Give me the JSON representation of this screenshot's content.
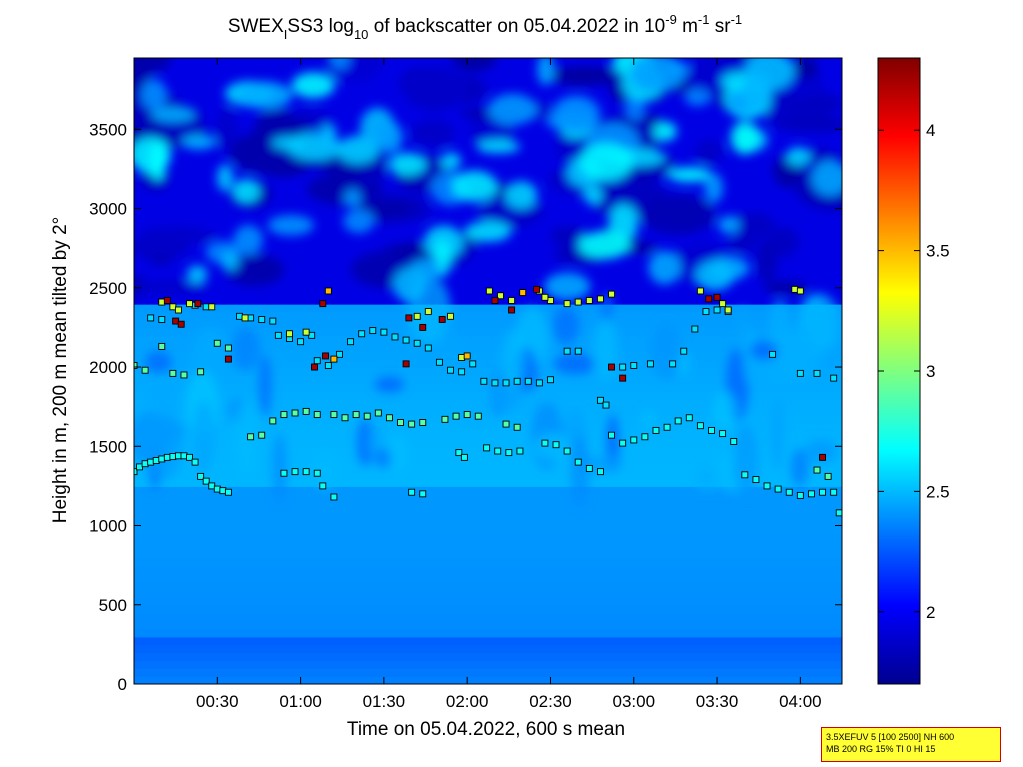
{
  "chart_data": {
    "type": "heatmap",
    "title": {
      "prefix": "SWEX",
      "sub_i": "I",
      "mid": "SS3 log",
      "sub_10": "10",
      "mid2": " of backscatter on 05.04.2022 in 10",
      "sup_neg9": "-9",
      "unit_m": " m",
      "sup_neg1a": "-1",
      "unit_sr": " sr",
      "sup_neg1b": "-1"
    },
    "xlabel": "Time on 05.04.2022, 600 s mean",
    "ylabel": "Height in m, 200 m mean tilted by 2°",
    "x_ticks": [
      "00:30",
      "01:00",
      "01:30",
      "02:00",
      "02:30",
      "03:00",
      "03:30",
      "04:00"
    ],
    "x_tick_minutes": [
      30,
      60,
      90,
      120,
      150,
      180,
      210,
      240
    ],
    "xlim_minutes": [
      0,
      255
    ],
    "y_ticks": [
      "0",
      "500",
      "1000",
      "1500",
      "2000",
      "2500",
      "3000",
      "3500"
    ],
    "y_tick_values": [
      0,
      500,
      1000,
      1500,
      2000,
      2500,
      3000,
      3500
    ],
    "ylim": [
      0,
      3950
    ],
    "colorbar": {
      "ticks": [
        "2",
        "2.5",
        "3",
        "3.5",
        "4"
      ],
      "tick_values": [
        2,
        2.5,
        3,
        3.5,
        4
      ],
      "range": [
        1.7,
        4.3
      ],
      "colormap": "jet"
    },
    "field_description_values": {
      "top_zone_min_height": 2450,
      "top_zone_level": 1.95,
      "surface_level": 2.3
    },
    "markers": [
      {
        "t": 0,
        "h": 1340,
        "v": 2.7
      },
      {
        "t": 2,
        "h": 1370,
        "v": 2.7
      },
      {
        "t": 4,
        "h": 1390,
        "v": 2.7
      },
      {
        "t": 6,
        "h": 1400,
        "v": 2.7
      },
      {
        "t": 8,
        "h": 1410,
        "v": 2.7
      },
      {
        "t": 10,
        "h": 1420,
        "v": 2.7
      },
      {
        "t": 12,
        "h": 1430,
        "v": 2.7
      },
      {
        "t": 14,
        "h": 1435,
        "v": 2.7
      },
      {
        "t": 16,
        "h": 1440,
        "v": 2.7
      },
      {
        "t": 18,
        "h": 1440,
        "v": 2.7
      },
      {
        "t": 20,
        "h": 1430,
        "v": 2.7
      },
      {
        "t": 22,
        "h": 1400,
        "v": 2.7
      },
      {
        "t": 24,
        "h": 1310,
        "v": 2.7
      },
      {
        "t": 26,
        "h": 1280,
        "v": 2.7
      },
      {
        "t": 28,
        "h": 1250,
        "v": 2.7
      },
      {
        "t": 30,
        "h": 1230,
        "v": 2.7
      },
      {
        "t": 32,
        "h": 1220,
        "v": 2.7
      },
      {
        "t": 34,
        "h": 1210,
        "v": 2.7
      },
      {
        "t": 54,
        "h": 1330,
        "v": 2.7
      },
      {
        "t": 58,
        "h": 1340,
        "v": 2.7
      },
      {
        "t": 62,
        "h": 1340,
        "v": 2.7
      },
      {
        "t": 66,
        "h": 1330,
        "v": 2.7
      },
      {
        "t": 68,
        "h": 1250,
        "v": 2.7
      },
      {
        "t": 72,
        "h": 1180,
        "v": 2.7
      },
      {
        "t": 100,
        "h": 1210,
        "v": 2.7
      },
      {
        "t": 104,
        "h": 1200,
        "v": 2.7
      },
      {
        "t": 117,
        "h": 1460,
        "v": 2.7
      },
      {
        "t": 119,
        "h": 1430,
        "v": 2.7
      },
      {
        "t": 127,
        "h": 1490,
        "v": 2.7
      },
      {
        "t": 131,
        "h": 1470,
        "v": 2.7
      },
      {
        "t": 135,
        "h": 1460,
        "v": 2.7
      },
      {
        "t": 139,
        "h": 1470,
        "v": 2.7
      },
      {
        "t": 148,
        "h": 1520,
        "v": 2.7
      },
      {
        "t": 152,
        "h": 1510,
        "v": 2.7
      },
      {
        "t": 156,
        "h": 1470,
        "v": 2.7
      },
      {
        "t": 160,
        "h": 1400,
        "v": 2.7
      },
      {
        "t": 164,
        "h": 1360,
        "v": 2.7
      },
      {
        "t": 168,
        "h": 1340,
        "v": 2.7
      },
      {
        "t": 172,
        "h": 1570,
        "v": 2.7
      },
      {
        "t": 176,
        "h": 1520,
        "v": 2.7
      },
      {
        "t": 180,
        "h": 1540,
        "v": 2.7
      },
      {
        "t": 184,
        "h": 1560,
        "v": 2.7
      },
      {
        "t": 188,
        "h": 1600,
        "v": 2.7
      },
      {
        "t": 192,
        "h": 1620,
        "v": 2.7
      },
      {
        "t": 196,
        "h": 1660,
        "v": 2.7
      },
      {
        "t": 200,
        "h": 1680,
        "v": 2.7
      },
      {
        "t": 204,
        "h": 1630,
        "v": 2.7
      },
      {
        "t": 208,
        "h": 1600,
        "v": 2.7
      },
      {
        "t": 212,
        "h": 1580,
        "v": 2.7
      },
      {
        "t": 216,
        "h": 1530,
        "v": 2.7
      },
      {
        "t": 220,
        "h": 1320,
        "v": 2.7
      },
      {
        "t": 224,
        "h": 1290,
        "v": 2.7
      },
      {
        "t": 228,
        "h": 1250,
        "v": 2.7
      },
      {
        "t": 232,
        "h": 1230,
        "v": 2.7
      },
      {
        "t": 236,
        "h": 1210,
        "v": 2.7
      },
      {
        "t": 240,
        "h": 1190,
        "v": 2.7
      },
      {
        "t": 244,
        "h": 1200,
        "v": 2.7
      },
      {
        "t": 248,
        "h": 1210,
        "v": 2.7
      },
      {
        "t": 252,
        "h": 1210,
        "v": 2.7
      },
      {
        "t": 254,
        "h": 1080,
        "v": 2.7
      },
      {
        "t": 0,
        "h": 2010,
        "v": 2.9
      },
      {
        "t": 4,
        "h": 1980,
        "v": 2.9
      },
      {
        "t": 10,
        "h": 2130,
        "v": 2.9
      },
      {
        "t": 14,
        "h": 1960,
        "v": 2.9
      },
      {
        "t": 18,
        "h": 1950,
        "v": 2.9
      },
      {
        "t": 24,
        "h": 1970,
        "v": 2.9
      },
      {
        "t": 30,
        "h": 2150,
        "v": 2.9
      },
      {
        "t": 34,
        "h": 2120,
        "v": 2.9
      },
      {
        "t": 42,
        "h": 1560,
        "v": 2.9
      },
      {
        "t": 46,
        "h": 1570,
        "v": 2.9
      },
      {
        "t": 50,
        "h": 1660,
        "v": 2.9
      },
      {
        "t": 54,
        "h": 1700,
        "v": 2.9
      },
      {
        "t": 58,
        "h": 1710,
        "v": 2.9
      },
      {
        "t": 62,
        "h": 1720,
        "v": 2.9
      },
      {
        "t": 66,
        "h": 1700,
        "v": 2.9
      },
      {
        "t": 72,
        "h": 1700,
        "v": 2.9
      },
      {
        "t": 76,
        "h": 1680,
        "v": 2.9
      },
      {
        "t": 80,
        "h": 1700,
        "v": 2.9
      },
      {
        "t": 84,
        "h": 1690,
        "v": 2.9
      },
      {
        "t": 88,
        "h": 1710,
        "v": 2.9
      },
      {
        "t": 92,
        "h": 1680,
        "v": 2.9
      },
      {
        "t": 96,
        "h": 1650,
        "v": 2.9
      },
      {
        "t": 100,
        "h": 1640,
        "v": 2.9
      },
      {
        "t": 104,
        "h": 1650,
        "v": 2.9
      },
      {
        "t": 112,
        "h": 1670,
        "v": 2.9
      },
      {
        "t": 116,
        "h": 1690,
        "v": 2.9
      },
      {
        "t": 120,
        "h": 1700,
        "v": 2.9
      },
      {
        "t": 124,
        "h": 1690,
        "v": 2.9
      },
      {
        "t": 134,
        "h": 1640,
        "v": 2.9
      },
      {
        "t": 138,
        "h": 1620,
        "v": 2.9
      },
      {
        "t": 246,
        "h": 1350,
        "v": 2.9
      },
      {
        "t": 250,
        "h": 1310,
        "v": 2.9
      },
      {
        "t": 6,
        "h": 2310,
        "v": 2.6
      },
      {
        "t": 10,
        "h": 2300,
        "v": 2.6
      },
      {
        "t": 22,
        "h": 2390,
        "v": 2.6
      },
      {
        "t": 26,
        "h": 2380,
        "v": 2.6
      },
      {
        "t": 38,
        "h": 2320,
        "v": 2.6
      },
      {
        "t": 42,
        "h": 2310,
        "v": 2.6
      },
      {
        "t": 46,
        "h": 2300,
        "v": 2.6
      },
      {
        "t": 50,
        "h": 2290,
        "v": 2.6
      },
      {
        "t": 52,
        "h": 2200,
        "v": 2.6
      },
      {
        "t": 56,
        "h": 2180,
        "v": 2.6
      },
      {
        "t": 60,
        "h": 2160,
        "v": 2.6
      },
      {
        "t": 64,
        "h": 2200,
        "v": 2.6
      },
      {
        "t": 66,
        "h": 2040,
        "v": 2.6
      },
      {
        "t": 70,
        "h": 2010,
        "v": 2.6
      },
      {
        "t": 74,
        "h": 2080,
        "v": 2.6
      },
      {
        "t": 78,
        "h": 2160,
        "v": 2.6
      },
      {
        "t": 82,
        "h": 2210,
        "v": 2.6
      },
      {
        "t": 86,
        "h": 2230,
        "v": 2.6
      },
      {
        "t": 90,
        "h": 2220,
        "v": 2.6
      },
      {
        "t": 94,
        "h": 2190,
        "v": 2.6
      },
      {
        "t": 98,
        "h": 2170,
        "v": 2.6
      },
      {
        "t": 102,
        "h": 2150,
        "v": 2.6
      },
      {
        "t": 106,
        "h": 2120,
        "v": 2.6
      },
      {
        "t": 110,
        "h": 2030,
        "v": 2.6
      },
      {
        "t": 114,
        "h": 1980,
        "v": 2.6
      },
      {
        "t": 118,
        "h": 1970,
        "v": 2.6
      },
      {
        "t": 122,
        "h": 2020,
        "v": 2.6
      },
      {
        "t": 126,
        "h": 1910,
        "v": 2.6
      },
      {
        "t": 130,
        "h": 1900,
        "v": 2.6
      },
      {
        "t": 134,
        "h": 1900,
        "v": 2.6
      },
      {
        "t": 138,
        "h": 1910,
        "v": 2.6
      },
      {
        "t": 142,
        "h": 1910,
        "v": 2.6
      },
      {
        "t": 146,
        "h": 1900,
        "v": 2.6
      },
      {
        "t": 150,
        "h": 1920,
        "v": 2.6
      },
      {
        "t": 156,
        "h": 2100,
        "v": 2.6
      },
      {
        "t": 160,
        "h": 2100,
        "v": 2.6
      },
      {
        "t": 168,
        "h": 1790,
        "v": 2.6
      },
      {
        "t": 170,
        "h": 1760,
        "v": 2.6
      },
      {
        "t": 176,
        "h": 2000,
        "v": 2.6
      },
      {
        "t": 180,
        "h": 2010,
        "v": 2.6
      },
      {
        "t": 186,
        "h": 2020,
        "v": 2.6
      },
      {
        "t": 194,
        "h": 2020,
        "v": 2.6
      },
      {
        "t": 198,
        "h": 2100,
        "v": 2.6
      },
      {
        "t": 202,
        "h": 2240,
        "v": 2.6
      },
      {
        "t": 206,
        "h": 2350,
        "v": 2.6
      },
      {
        "t": 210,
        "h": 2360,
        "v": 2.6
      },
      {
        "t": 214,
        "h": 2350,
        "v": 2.6
      },
      {
        "t": 230,
        "h": 2080,
        "v": 2.6
      },
      {
        "t": 240,
        "h": 1960,
        "v": 2.6
      },
      {
        "t": 246,
        "h": 1960,
        "v": 2.6
      },
      {
        "t": 252,
        "h": 1930,
        "v": 2.6
      },
      {
        "t": 10,
        "h": 2410,
        "v": 3.2
      },
      {
        "t": 14,
        "h": 2380,
        "v": 3.2
      },
      {
        "t": 16,
        "h": 2360,
        "v": 3.2
      },
      {
        "t": 20,
        "h": 2400,
        "v": 3.2
      },
      {
        "t": 28,
        "h": 2380,
        "v": 3.2
      },
      {
        "t": 40,
        "h": 2310,
        "v": 3.2
      },
      {
        "t": 56,
        "h": 2210,
        "v": 3.2
      },
      {
        "t": 62,
        "h": 2220,
        "v": 3.2
      },
      {
        "t": 102,
        "h": 2320,
        "v": 3.2
      },
      {
        "t": 106,
        "h": 2350,
        "v": 3.2
      },
      {
        "t": 114,
        "h": 2320,
        "v": 3.2
      },
      {
        "t": 118,
        "h": 2060,
        "v": 3.2
      },
      {
        "t": 128,
        "h": 2480,
        "v": 3.2
      },
      {
        "t": 132,
        "h": 2450,
        "v": 3.2
      },
      {
        "t": 136,
        "h": 2420,
        "v": 3.2
      },
      {
        "t": 146,
        "h": 2480,
        "v": 3.2
      },
      {
        "t": 150,
        "h": 2420,
        "v": 3.2
      },
      {
        "t": 156,
        "h": 2400,
        "v": 3.2
      },
      {
        "t": 160,
        "h": 2410,
        "v": 3.2
      },
      {
        "t": 164,
        "h": 2420,
        "v": 3.2
      },
      {
        "t": 168,
        "h": 2430,
        "v": 3.2
      },
      {
        "t": 172,
        "h": 2460,
        "v": 3.2
      },
      {
        "t": 204,
        "h": 2480,
        "v": 3.2
      },
      {
        "t": 212,
        "h": 2400,
        "v": 3.2
      },
      {
        "t": 214,
        "h": 2360,
        "v": 3.2
      },
      {
        "t": 238,
        "h": 2490,
        "v": 3.2
      },
      {
        "t": 240,
        "h": 2480,
        "v": 3.2
      },
      {
        "t": 148,
        "h": 2440,
        "v": 3.2
      },
      {
        "t": 12,
        "h": 2420,
        "v": 4.2
      },
      {
        "t": 15,
        "h": 2290,
        "v": 4.2
      },
      {
        "t": 17,
        "h": 2270,
        "v": 4.2
      },
      {
        "t": 23,
        "h": 2400,
        "v": 4.2
      },
      {
        "t": 34,
        "h": 2050,
        "v": 4.2
      },
      {
        "t": 65,
        "h": 2000,
        "v": 4.2
      },
      {
        "t": 69,
        "h": 2070,
        "v": 4.2
      },
      {
        "t": 68,
        "h": 2400,
        "v": 4.2
      },
      {
        "t": 99,
        "h": 2310,
        "v": 4.2
      },
      {
        "t": 104,
        "h": 2250,
        "v": 4.2
      },
      {
        "t": 111,
        "h": 2300,
        "v": 4.2
      },
      {
        "t": 130,
        "h": 2420,
        "v": 4.2
      },
      {
        "t": 136,
        "h": 2360,
        "v": 4.2
      },
      {
        "t": 145,
        "h": 2490,
        "v": 4.2
      },
      {
        "t": 172,
        "h": 2000,
        "v": 4.2
      },
      {
        "t": 176,
        "h": 1930,
        "v": 4.2
      },
      {
        "t": 207,
        "h": 2430,
        "v": 4.2
      },
      {
        "t": 210,
        "h": 2440,
        "v": 4.2
      },
      {
        "t": 248,
        "h": 1430,
        "v": 4.2
      },
      {
        "t": 98,
        "h": 2020,
        "v": 4.2
      },
      {
        "t": 72,
        "h": 2050,
        "v": 3.5
      },
      {
        "t": 120,
        "h": 2070,
        "v": 3.5
      },
      {
        "t": 140,
        "h": 2470,
        "v": 3.5
      },
      {
        "t": 70,
        "h": 2480,
        "v": 3.5
      }
    ]
  },
  "info_box": {
    "line1": "3.5XEFUV 5 [100 2500] NH 600",
    "line2": "MB 200 RG 15% TI 0 HI 15"
  }
}
